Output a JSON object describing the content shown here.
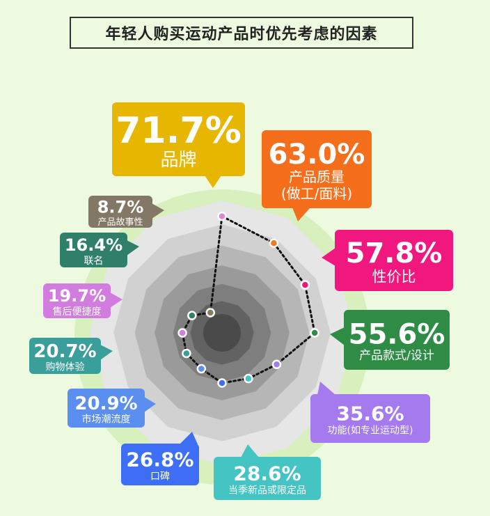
{
  "title": "年轻人购买运动产品时优先考虑的因素",
  "chart_data": {
    "type": "radar",
    "title": "年轻人购买运动产品时优先考虑的因素",
    "unit": "%",
    "categories": [
      "品牌",
      "产品质量(做工/面料)",
      "性价比",
      "产品款式/设计",
      "功能(如专业运动型)",
      "当季新品或限定品",
      "口碑",
      "市场潮流度",
      "购物体验",
      "售后便捷度",
      "联名",
      "产品故事性"
    ],
    "values": [
      71.7,
      63.0,
      57.8,
      55.6,
      35.6,
      28.6,
      26.8,
      20.9,
      20.7,
      19.7,
      16.4,
      8.7
    ],
    "labels": [
      {
        "value": "71.7%",
        "text": "品牌",
        "color": "#e6b600",
        "dot": "#d989d6"
      },
      {
        "value": "63.0%",
        "text": "产品质量",
        "text2": "(做工/面料)",
        "color": "#f46e1c",
        "dot": "#f07a28"
      },
      {
        "value": "57.8%",
        "text": "性价比",
        "color": "#f0187e",
        "dot": "#e8187a"
      },
      {
        "value": "55.6%",
        "text": "产品款式/设计",
        "color": "#2e8c45",
        "dot": "#2e8c45"
      },
      {
        "value": "35.6%",
        "text": "功能(如专业运动型)",
        "color": "#a57aef",
        "dot": "#a57aef"
      },
      {
        "value": "28.6%",
        "text": "当季新品或限定品",
        "color": "#45c4c4",
        "dot": "#45c4c4"
      },
      {
        "value": "26.8%",
        "text": "口碑",
        "color": "#3d6ef5",
        "dot": "#3d6ef5"
      },
      {
        "value": "20.9%",
        "text": "市场潮流度",
        "color": "#5b8fef",
        "dot": "#5b8fef"
      },
      {
        "value": "20.7%",
        "text": "购物体验",
        "color": "#3a9e9a",
        "dot": "#3a9e9a"
      },
      {
        "value": "19.7%",
        "text": "售后便捷度",
        "color": "#d27ce0",
        "dot": "#d27ce0"
      },
      {
        "value": "16.4%",
        "text": "联名",
        "color": "#2f7f6b",
        "dot": "#2f7f6b"
      },
      {
        "value": "8.7%",
        "text": "产品故事性",
        "color": "#837866",
        "dot": "#8a7a5a"
      }
    ]
  }
}
